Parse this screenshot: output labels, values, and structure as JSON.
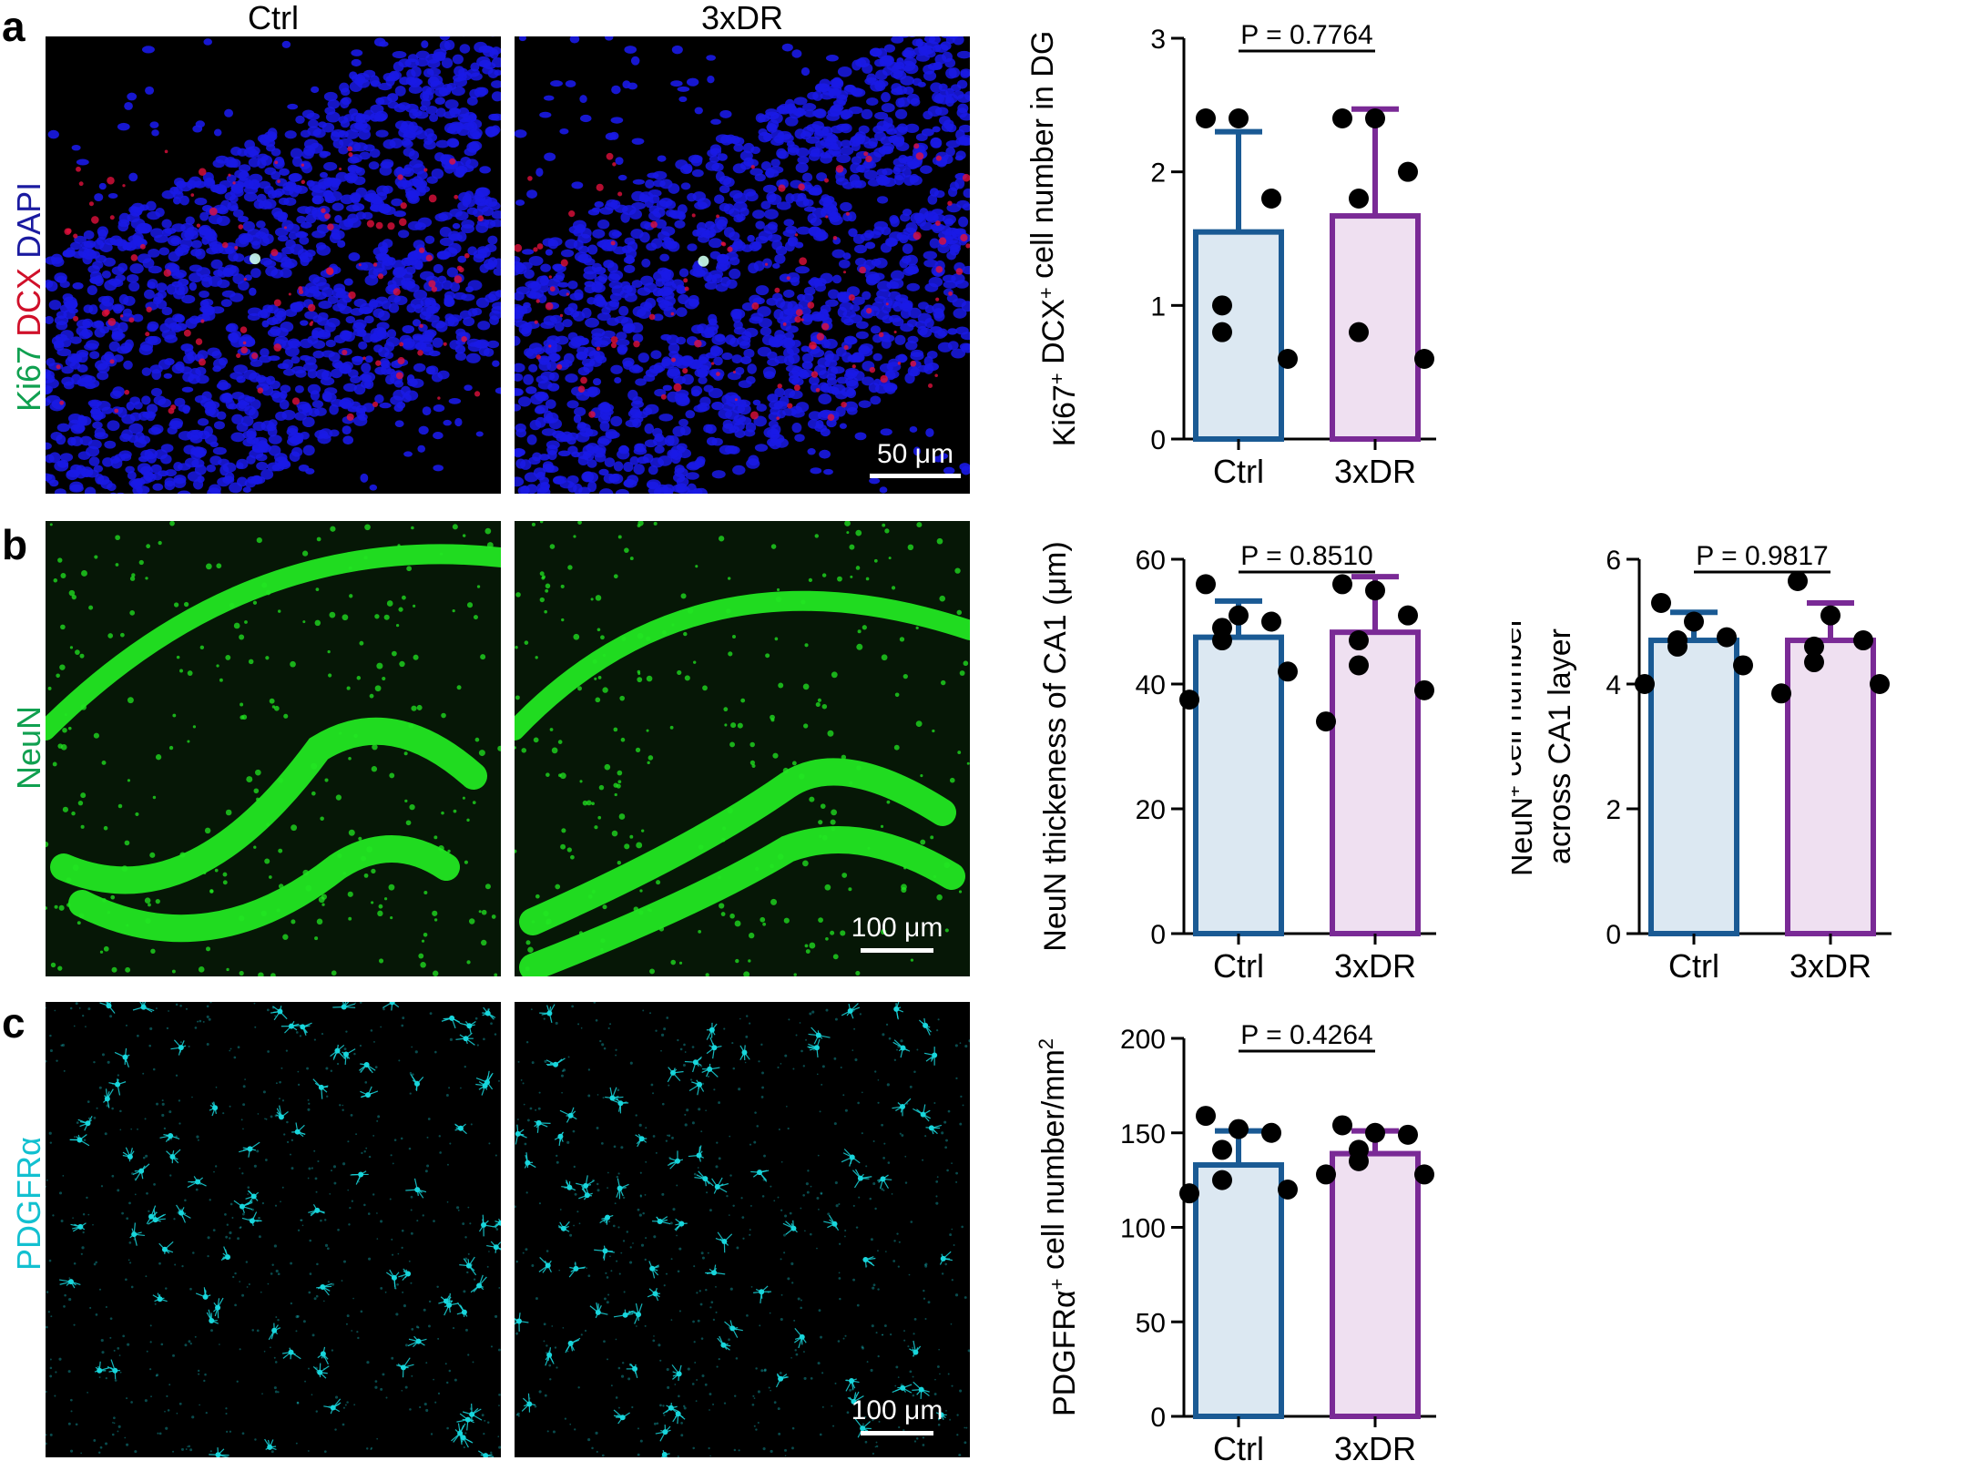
{
  "panel_letters": [
    "a",
    "b",
    "c"
  ],
  "column_labels": [
    "Ctrl",
    "3xDR"
  ],
  "row_labels": {
    "a": [
      {
        "text": "Ki67",
        "color": "#10a050"
      },
      {
        "text": " DCX",
        "color": "#d0102a"
      },
      {
        "text": " DAPI",
        "color": "#1a1aa0"
      }
    ],
    "b": [
      {
        "text": "NeuN",
        "color": "#10a050"
      }
    ],
    "c": [
      {
        "text": "PDGFRα",
        "color": "#12c0d0"
      }
    ]
  },
  "scale_bars": {
    "a": "50 μm",
    "b": "100 μm",
    "c": "100 μm"
  },
  "image_colors": {
    "dapi": "#1a1ae6",
    "dcx": "#e0103c",
    "neun": "#22e622",
    "pdgfra": "#19d6dc"
  },
  "chart_data": [
    {
      "id": "a-chart",
      "type": "bar",
      "categories": [
        "Ctrl",
        "3xDR"
      ],
      "ylabel_parts": [
        {
          "text": "Ki67",
          "sup": false
        },
        {
          "text": "+",
          "sup": true
        },
        {
          "text": " DCX",
          "sup": false
        },
        {
          "text": "+",
          "sup": true
        },
        {
          "text": " cell number in DG",
          "sup": false
        }
      ],
      "ylim": [
        0,
        3
      ],
      "yticks": [
        0,
        1,
        2,
        3
      ],
      "means": [
        1.55,
        1.67
      ],
      "sd_upper": [
        2.3,
        2.47
      ],
      "points": [
        [
          2.4,
          2.4,
          1.8,
          1.0,
          0.8,
          0.6
        ],
        [
          2.4,
          2.4,
          2.0,
          1.8,
          0.8,
          0.6
        ]
      ],
      "p_label": "P = 0.7764",
      "colors": {
        "Ctrl": "#1a5a94",
        "3xDR": "#7a2a96"
      },
      "fills": {
        "Ctrl": "#dce8f2",
        "3xDR": "#efe0f1"
      }
    },
    {
      "id": "b-chart-1",
      "type": "bar",
      "categories": [
        "Ctrl",
        "3xDR"
      ],
      "ylabel_parts": [
        {
          "text": "NeuN thickeness of CA1 (μm)",
          "sup": false
        }
      ],
      "ylim": [
        0,
        60
      ],
      "yticks": [
        0,
        20,
        40,
        60
      ],
      "means": [
        47.5,
        48.3
      ],
      "sd_upper": [
        53.3,
        57.2
      ],
      "points": [
        [
          56,
          51,
          50,
          49,
          47,
          42,
          37.5
        ],
        [
          56,
          55,
          51,
          47,
          43,
          39,
          34
        ]
      ],
      "p_label": "P = 0.8510",
      "colors": {
        "Ctrl": "#1a5a94",
        "3xDR": "#7a2a96"
      },
      "fills": {
        "Ctrl": "#dce8f2",
        "3xDR": "#efe0f1"
      }
    },
    {
      "id": "b-chart-2",
      "type": "bar",
      "categories": [
        "Ctrl",
        "3xDR"
      ],
      "ylabel_parts": [
        {
          "text": "NeuN",
          "sup": false
        },
        {
          "text": "+",
          "sup": true
        },
        {
          "text": " cell number",
          "sup": false
        },
        {
          "text": "across CA1 layer",
          "sup": false,
          "newline": true
        }
      ],
      "ylim": [
        0,
        6
      ],
      "yticks": [
        0,
        2,
        4,
        6
      ],
      "means": [
        4.7,
        4.7
      ],
      "sd_upper": [
        5.15,
        5.3
      ],
      "points": [
        [
          5.3,
          5.0,
          4.75,
          4.7,
          4.6,
          4.3,
          4.0
        ],
        [
          5.65,
          5.1,
          4.7,
          4.6,
          4.35,
          4.0,
          3.85
        ]
      ],
      "p_label": "P = 0.9817",
      "colors": {
        "Ctrl": "#1a5a94",
        "3xDR": "#7a2a96"
      },
      "fills": {
        "Ctrl": "#dce8f2",
        "3xDR": "#efe0f1"
      }
    },
    {
      "id": "c-chart",
      "type": "bar",
      "categories": [
        "Ctrl",
        "3xDR"
      ],
      "ylabel_parts": [
        {
          "text": "PDGFRα",
          "sup": false
        },
        {
          "text": "+",
          "sup": true
        },
        {
          "text": " cell number/mm",
          "sup": false
        },
        {
          "text": "2",
          "sup": true
        }
      ],
      "ylim": [
        0,
        200
      ],
      "yticks": [
        0,
        50,
        100,
        150,
        200
      ],
      "means": [
        133,
        139
      ],
      "sd_upper": [
        151,
        151
      ],
      "points": [
        [
          159,
          152,
          150,
          141,
          125,
          120,
          118
        ],
        [
          154,
          150,
          149,
          141,
          135,
          128,
          128
        ]
      ],
      "p_label": "P = 0.4264",
      "colors": {
        "Ctrl": "#1a5a94",
        "3xDR": "#7a2a96"
      },
      "fills": {
        "Ctrl": "#dce8f2",
        "3xDR": "#efe0f1"
      }
    }
  ]
}
